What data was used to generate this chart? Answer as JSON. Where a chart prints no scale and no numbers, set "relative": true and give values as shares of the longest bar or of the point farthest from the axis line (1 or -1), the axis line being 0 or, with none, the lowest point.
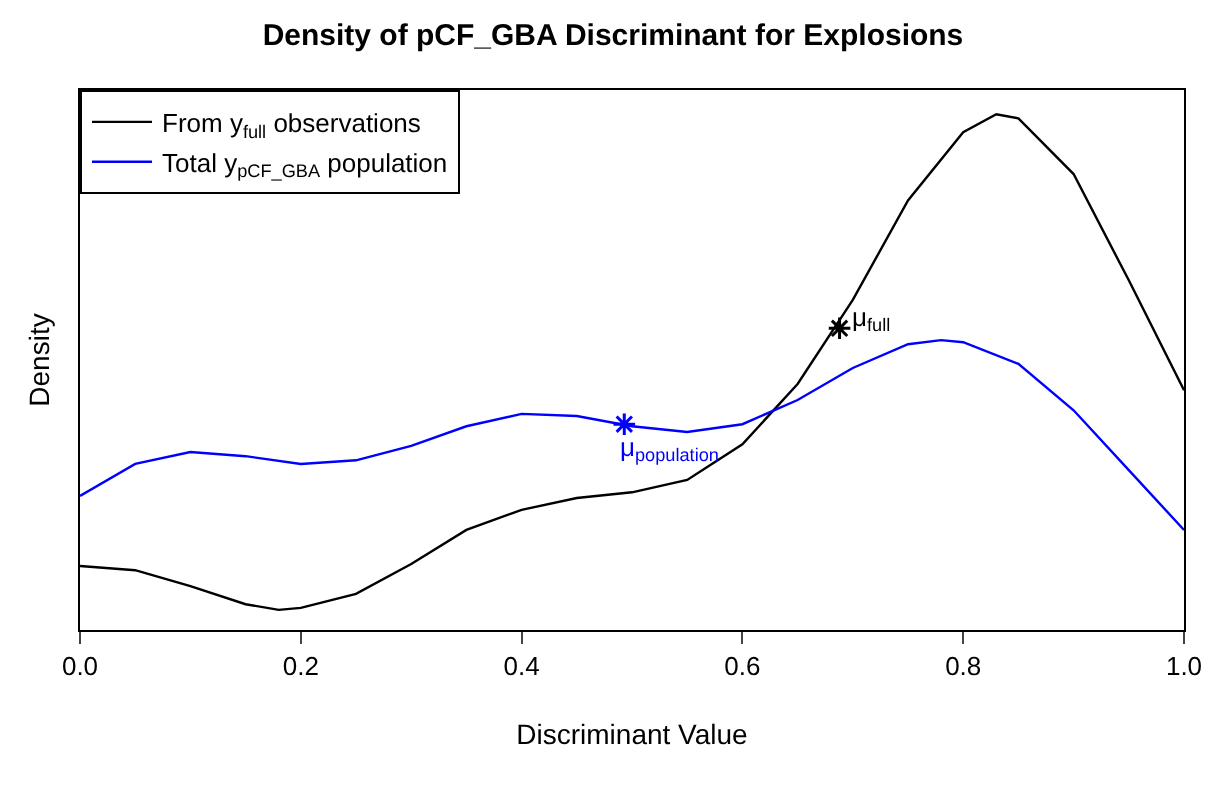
{
  "chart_data": {
    "type": "line",
    "title": "Density of pCF_GBA Discriminant for Explosions",
    "xlabel": "Discriminant Value",
    "ylabel": "Density",
    "relative": true,
    "xlim": [
      0,
      1
    ],
    "xticks": [
      {
        "value": 0,
        "label": "0.0"
      },
      {
        "value": 0.2,
        "label": "0.2"
      },
      {
        "value": 0.4,
        "label": "0.4"
      },
      {
        "value": 0.6,
        "label": "0.6"
      },
      {
        "value": 0.8,
        "label": "0.8"
      },
      {
        "value": 1,
        "label": "1.0"
      }
    ],
    "x": [
      0,
      0.05,
      0.1,
      0.15,
      0.18,
      0.2,
      0.25,
      0.3,
      0.35,
      0.4,
      0.45,
      0.5,
      0.55,
      0.6,
      0.65,
      0.7,
      0.75,
      0.8,
      0.83,
      0.85,
      0.9,
      0.95,
      1.0
    ],
    "series": [
      {
        "name": "From y$_{full}$ observations",
        "color": "#000000",
        "values": [
          0.124,
          0.116,
          0.085,
          0.05,
          0.039,
          0.043,
          0.07,
          0.128,
          0.194,
          0.233,
          0.256,
          0.267,
          0.291,
          0.36,
          0.477,
          0.64,
          0.833,
          0.965,
          1.0,
          0.992,
          0.884,
          0.678,
          0.465
        ]
      },
      {
        "name": "Total y$_{pCF_GBA}$ population",
        "color": "#0000ff",
        "x": [
          0,
          0.05,
          0.1,
          0.15,
          0.2,
          0.25,
          0.3,
          0.35,
          0.4,
          0.45,
          0.5,
          0.55,
          0.6,
          0.65,
          0.7,
          0.75,
          0.78,
          0.8,
          0.85,
          0.9,
          0.95,
          1.0
        ],
        "values": [
          0.26,
          0.322,
          0.345,
          0.337,
          0.322,
          0.329,
          0.357,
          0.395,
          0.419,
          0.415,
          0.395,
          0.384,
          0.399,
          0.446,
          0.508,
          0.554,
          0.562,
          0.558,
          0.516,
          0.426,
          0.31,
          0.194
        ]
      },
      {
        "type": "scatter",
        "marker": "cross",
        "color": "#000000",
        "x": [
          0.688
        ],
        "values": [
          0.585
        ]
      },
      {
        "type": "scatter",
        "marker": "cross",
        "color": "#0000ff",
        "x": [
          0.493
        ],
        "values": [
          0.399
        ]
      }
    ],
    "annotations": [
      {
        "text": "μ$_{full}$",
        "x": 0.688,
        "y": 0.585
      },
      {
        "text": "μ$_{population}$",
        "x": 0.493,
        "y": 0.399
      }
    ],
    "legend": "top left"
  }
}
